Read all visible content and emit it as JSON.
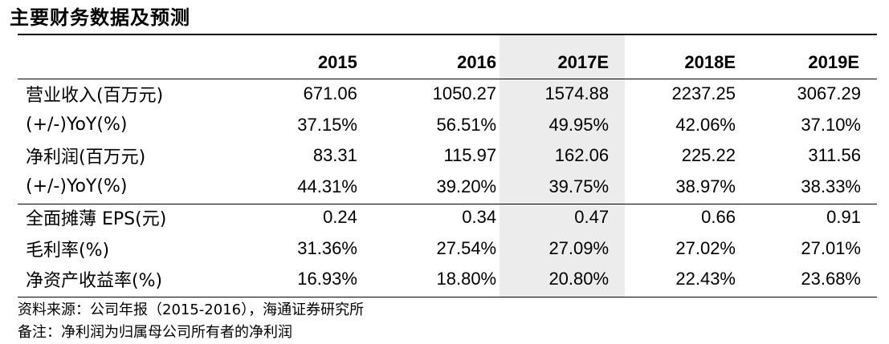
{
  "title": "主要财务数据及预测",
  "table": {
    "headers": [
      "",
      "2015",
      "2016",
      "2017E",
      "2018E",
      "2019E"
    ],
    "rows": [
      {
        "label": "营业收入(百万元)",
        "values": [
          "671.06",
          "1050.27",
          "1574.88",
          "2237.25",
          "3067.29"
        ]
      },
      {
        "label": "(+/-)YoY(%)",
        "values": [
          "37.15%",
          "56.51%",
          "49.95%",
          "42.06%",
          "37.10%"
        ]
      },
      {
        "label": "净利润(百万元)",
        "values": [
          "83.31",
          "115.97",
          "162.06",
          "225.22",
          "311.56"
        ]
      },
      {
        "label": "(+/-)YoY(%)",
        "values": [
          "44.31%",
          "39.20%",
          "39.75%",
          "38.97%",
          "38.33%"
        ]
      },
      {
        "label": "全面摊薄 EPS(元)",
        "values": [
          "0.24",
          "0.34",
          "0.47",
          "0.66",
          "0.91"
        ]
      },
      {
        "label": "毛利率(%)",
        "values": [
          "31.36%",
          "27.54%",
          "27.09%",
          "27.02%",
          "27.01%"
        ]
      },
      {
        "label": "净资产收益率(%)",
        "values": [
          "16.93%",
          "18.80%",
          "20.80%",
          "22.43%",
          "23.68%"
        ]
      }
    ]
  },
  "footnotes": {
    "source": "资料来源：公司年报（2015-2016），海通证券研究所",
    "remark": "备注：净利润为归属母公司所有者的净利润"
  }
}
